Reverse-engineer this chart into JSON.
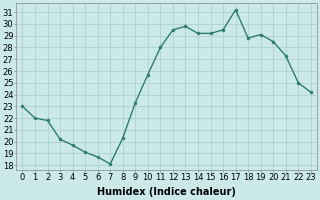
{
  "x": [
    0,
    1,
    2,
    3,
    4,
    5,
    6,
    7,
    8,
    9,
    10,
    11,
    12,
    13,
    14,
    15,
    16,
    17,
    18,
    19,
    20,
    21,
    22,
    23
  ],
  "y": [
    23.0,
    22.0,
    21.8,
    20.2,
    19.7,
    19.1,
    18.7,
    18.1,
    20.3,
    23.3,
    25.7,
    28.0,
    29.5,
    29.8,
    29.2,
    29.2,
    29.5,
    31.2,
    28.8,
    29.1,
    28.5,
    27.3,
    25.0,
    24.2
  ],
  "line_color": "#2e7d6e",
  "marker": "o",
  "marker_size": 2.0,
  "bg_color": "#cce9e9",
  "grid_color": "#aacccc",
  "xlabel": "Humidex (Indice chaleur)",
  "ylabel_ticks": [
    18,
    19,
    20,
    21,
    22,
    23,
    24,
    25,
    26,
    27,
    28,
    29,
    30,
    31
  ],
  "ylim": [
    17.6,
    31.8
  ],
  "xlim": [
    -0.5,
    23.5
  ],
  "xlabel_fontsize": 7,
  "tick_fontsize": 6,
  "line_width": 1.0,
  "figure_width": 3.2,
  "figure_height": 2.0,
  "dpi": 100
}
